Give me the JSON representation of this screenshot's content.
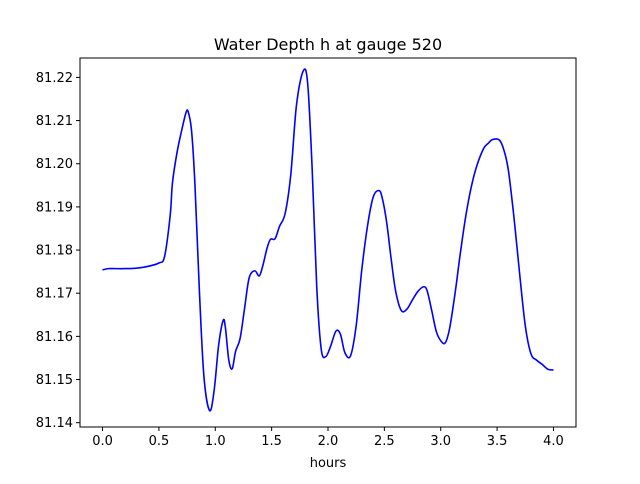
{
  "chart_data": {
    "type": "line",
    "title": "Water Depth h at gauge 520",
    "xlabel": "hours",
    "ylabel": "",
    "xlim": [
      -0.2,
      4.2
    ],
    "ylim": [
      81.139,
      81.2245
    ],
    "xticks": [
      0.0,
      0.5,
      1.0,
      1.5,
      2.0,
      2.5,
      3.0,
      3.5,
      4.0
    ],
    "xtick_labels": [
      "0.0",
      "0.5",
      "1.0",
      "1.5",
      "2.0",
      "2.5",
      "3.0",
      "3.5",
      "4.0"
    ],
    "yticks": [
      81.14,
      81.15,
      81.16,
      81.17,
      81.18,
      81.19,
      81.2,
      81.21,
      81.22
    ],
    "ytick_labels": [
      "81.14",
      "81.15",
      "81.16",
      "81.17",
      "81.18",
      "81.19",
      "81.20",
      "81.21",
      "81.22"
    ],
    "grid": false,
    "legend": "none",
    "series": [
      {
        "color": "#0000ff",
        "x": [
          0.0,
          0.05,
          0.1,
          0.2,
          0.3,
          0.4,
          0.5,
          0.55,
          0.6,
          0.62,
          0.66,
          0.7,
          0.74,
          0.76,
          0.79,
          0.82,
          0.86,
          0.9,
          0.95,
          0.99,
          1.03,
          1.07,
          1.09,
          1.12,
          1.15,
          1.18,
          1.22,
          1.26,
          1.3,
          1.35,
          1.39,
          1.42,
          1.46,
          1.49,
          1.53,
          1.57,
          1.62,
          1.67,
          1.72,
          1.78,
          1.82,
          1.86,
          1.9,
          1.94,
          1.98,
          2.02,
          2.07,
          2.11,
          2.15,
          2.2,
          2.25,
          2.3,
          2.35,
          2.4,
          2.45,
          2.48,
          2.52,
          2.56,
          2.6,
          2.65,
          2.7,
          2.75,
          2.8,
          2.85,
          2.88,
          2.92,
          2.96,
          3.0,
          3.04,
          3.08,
          3.13,
          3.17,
          3.22,
          3.27,
          3.32,
          3.38,
          3.42,
          3.46,
          3.52,
          3.56,
          3.6,
          3.65,
          3.7,
          3.75,
          3.8,
          3.85,
          3.9,
          3.95,
          4.0
        ],
        "y": [
          81.1754,
          81.1757,
          81.1757,
          81.1757,
          81.1758,
          81.1762,
          81.177,
          81.1785,
          81.188,
          81.1955,
          81.2025,
          81.2075,
          81.2118,
          81.212,
          81.2075,
          81.195,
          81.17,
          81.1505,
          81.1428,
          81.1475,
          81.158,
          81.1637,
          81.162,
          81.1545,
          81.1525,
          81.1565,
          81.1595,
          81.1665,
          81.1735,
          81.1752,
          81.174,
          81.1762,
          81.1805,
          81.1825,
          81.1826,
          81.1855,
          81.1885,
          81.1975,
          81.2135,
          81.2215,
          81.2185,
          81.1985,
          81.1715,
          81.157,
          81.1553,
          81.1575,
          81.1612,
          81.1605,
          81.1562,
          81.1555,
          81.1625,
          81.1755,
          81.1855,
          81.1922,
          81.1938,
          81.1922,
          81.1865,
          81.178,
          81.1705,
          81.166,
          81.1663,
          81.1685,
          81.1705,
          81.1715,
          81.1705,
          81.166,
          81.1612,
          81.159,
          81.1585,
          81.162,
          81.1705,
          81.1785,
          81.1875,
          81.1945,
          81.1995,
          81.2035,
          81.2047,
          81.2056,
          81.2055,
          81.2032,
          81.1985,
          81.1875,
          81.1745,
          81.1625,
          81.156,
          81.1545,
          81.1535,
          81.1524,
          81.1522
        ]
      }
    ]
  }
}
